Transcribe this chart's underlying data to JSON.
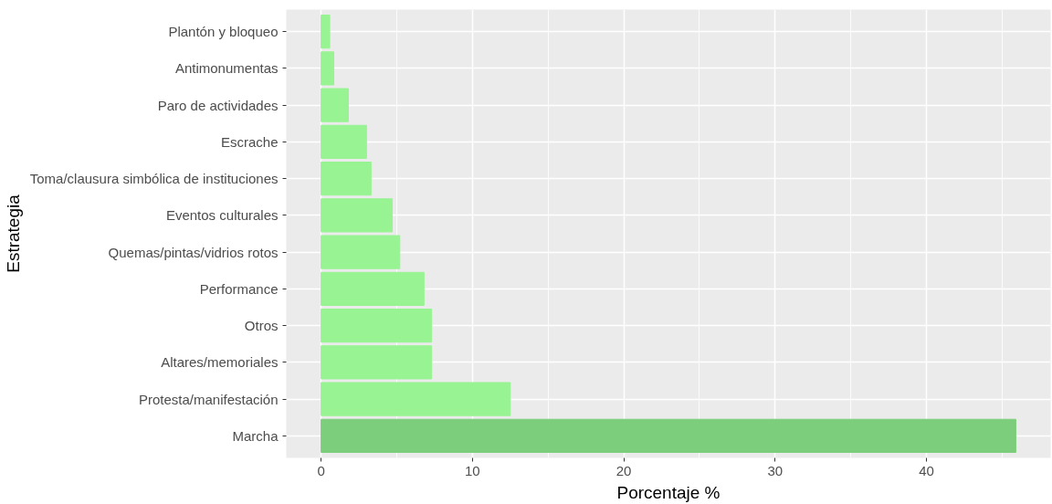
{
  "chart_data": {
    "type": "bar",
    "orientation": "horizontal",
    "xlabel": "Porcentaje %",
    "ylabel": "Estrategia",
    "categories": [
      "Plantón y bloqueo",
      "Antimonumentas",
      "Paro de actividades",
      "Escrache",
      "Toma/clausura simbólica de instituciones",
      "Eventos culturales",
      "Quemas/pintas/vidrios rotos",
      "Performance",
      "Otros",
      "Altares/memoriales",
      "Protesta/manifestación",
      "Marcha"
    ],
    "values": [
      0.57,
      0.84,
      1.8,
      3.0,
      3.3,
      4.7,
      5.2,
      6.8,
      7.3,
      7.3,
      12.5,
      45.9
    ],
    "colors": [
      "#98f393",
      "#98f393",
      "#98f393",
      "#98f393",
      "#98f393",
      "#98f393",
      "#98f393",
      "#98f393",
      "#98f393",
      "#98f393",
      "#98f393",
      "#7ccd7c"
    ],
    "xlim": [
      -2.3,
      48.2
    ],
    "xticks": [
      0,
      10,
      20,
      30,
      40
    ],
    "grid": true
  }
}
